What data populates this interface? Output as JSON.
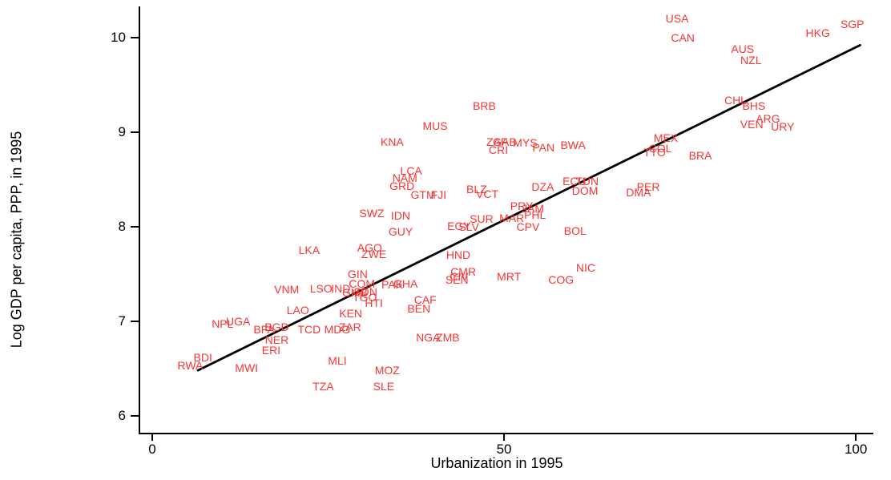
{
  "chart_data": {
    "type": "scatter",
    "title": "",
    "xlabel": "Urbanization in 1995",
    "ylabel": "Log GDP per capita, PPP, in 1995",
    "xlim": [
      -1.71,
      102.49
    ],
    "ylim": [
      5.82,
      10.33
    ],
    "x_ticks": [
      0,
      50,
      100
    ],
    "y_ticks": [
      6,
      7,
      8,
      9,
      10
    ],
    "grid": false,
    "legend": null,
    "marker_style": "country-code-text",
    "label_color": "#f93434",
    "axis_color": "#000000",
    "trend_line": {
      "x1": 6.5,
      "y1": 6.48,
      "x2": 100.6,
      "y2": 9.92,
      "color": "#000000"
    },
    "points": [
      {
        "label": "USA",
        "x": 74.6,
        "y": 10.2
      },
      {
        "label": "CAN",
        "x": 75.4,
        "y": 10.0
      },
      {
        "label": "SGP",
        "x": 99.5,
        "y": 10.14
      },
      {
        "label": "HKG",
        "x": 94.6,
        "y": 10.05
      },
      {
        "label": "AUS",
        "x": 83.9,
        "y": 9.88
      },
      {
        "label": "NZL",
        "x": 85.1,
        "y": 9.76
      },
      {
        "label": "CHL",
        "x": 82.9,
        "y": 9.34
      },
      {
        "label": "BHS",
        "x": 85.5,
        "y": 9.28
      },
      {
        "label": "ARG",
        "x": 87.5,
        "y": 9.14
      },
      {
        "label": "VEN",
        "x": 85.2,
        "y": 9.08
      },
      {
        "label": "URY",
        "x": 89.6,
        "y": 9.06
      },
      {
        "label": "BRB",
        "x": 47.2,
        "y": 9.28
      },
      {
        "label": "MUS",
        "x": 40.2,
        "y": 9.07
      },
      {
        "label": "KNA",
        "x": 34.1,
        "y": 8.9
      },
      {
        "label": "ZAF",
        "x": 49.0,
        "y": 8.9
      },
      {
        "label": "GAB",
        "x": 50.1,
        "y": 8.9
      },
      {
        "label": "MYS",
        "x": 53.0,
        "y": 8.89
      },
      {
        "label": "PAN",
        "x": 55.6,
        "y": 8.84
      },
      {
        "label": "BWA",
        "x": 59.8,
        "y": 8.86
      },
      {
        "label": "CRI",
        "x": 49.2,
        "y": 8.81
      },
      {
        "label": "MEX",
        "x": 73.0,
        "y": 8.94
      },
      {
        "label": "COL",
        "x": 72.2,
        "y": 8.83
      },
      {
        "label": "TTO",
        "x": 71.4,
        "y": 8.79
      },
      {
        "label": "BRA",
        "x": 77.9,
        "y": 8.75
      },
      {
        "label": "LCA",
        "x": 36.8,
        "y": 8.59
      },
      {
        "label": "NAM",
        "x": 35.9,
        "y": 8.52
      },
      {
        "label": "GRD",
        "x": 35.5,
        "y": 8.43
      },
      {
        "label": "GTM",
        "x": 38.5,
        "y": 8.34
      },
      {
        "label": "FJI",
        "x": 40.7,
        "y": 8.34
      },
      {
        "label": "ECU",
        "x": 60.0,
        "y": 8.48
      },
      {
        "label": "TUN",
        "x": 61.8,
        "y": 8.48
      },
      {
        "label": "DOM",
        "x": 61.5,
        "y": 8.38
      },
      {
        "label": "DZA",
        "x": 55.5,
        "y": 8.42
      },
      {
        "label": "BLZ",
        "x": 46.1,
        "y": 8.4
      },
      {
        "label": "VCT",
        "x": 47.6,
        "y": 8.35
      },
      {
        "label": "PER",
        "x": 70.5,
        "y": 8.42
      },
      {
        "label": "DMA",
        "x": 69.1,
        "y": 8.36
      },
      {
        "label": "SWZ",
        "x": 31.2,
        "y": 8.14
      },
      {
        "label": "IDN",
        "x": 35.3,
        "y": 8.12
      },
      {
        "label": "GUY",
        "x": 35.3,
        "y": 7.95
      },
      {
        "label": "PRY",
        "x": 52.5,
        "y": 8.22
      },
      {
        "label": "JAM",
        "x": 54.1,
        "y": 8.19
      },
      {
        "label": "PHL",
        "x": 54.4,
        "y": 8.13
      },
      {
        "label": "MAR",
        "x": 51.1,
        "y": 8.09
      },
      {
        "label": "SUR",
        "x": 46.8,
        "y": 8.08
      },
      {
        "label": "EGY",
        "x": 43.6,
        "y": 8.01
      },
      {
        "label": "SLV",
        "x": 45.0,
        "y": 8.0
      },
      {
        "label": "CPV",
        "x": 53.4,
        "y": 8.0
      },
      {
        "label": "BOL",
        "x": 60.1,
        "y": 7.96
      },
      {
        "label": "NIC",
        "x": 61.6,
        "y": 7.57
      },
      {
        "label": "LKA",
        "x": 22.3,
        "y": 7.75
      },
      {
        "label": "AGO",
        "x": 30.9,
        "y": 7.78
      },
      {
        "label": "ZWE",
        "x": 31.5,
        "y": 7.71
      },
      {
        "label": "HND",
        "x": 43.5,
        "y": 7.7
      },
      {
        "label": "CMR",
        "x": 44.2,
        "y": 7.52
      },
      {
        "label": "CIV",
        "x": 43.6,
        "y": 7.47
      },
      {
        "label": "SEN",
        "x": 43.3,
        "y": 7.44
      },
      {
        "label": "MRT",
        "x": 50.7,
        "y": 7.47
      },
      {
        "label": "COG",
        "x": 58.1,
        "y": 7.44
      },
      {
        "label": "GIN",
        "x": 29.2,
        "y": 7.5
      },
      {
        "label": "COM",
        "x": 29.8,
        "y": 7.4
      },
      {
        "label": "VNM",
        "x": 19.1,
        "y": 7.34
      },
      {
        "label": "LSO",
        "x": 24.0,
        "y": 7.35
      },
      {
        "label": "IND",
        "x": 26.8,
        "y": 7.35
      },
      {
        "label": "GMB",
        "x": 28.8,
        "y": 7.3
      },
      {
        "label": "SDN",
        "x": 30.3,
        "y": 7.31
      },
      {
        "label": "TGO",
        "x": 30.2,
        "y": 7.25
      },
      {
        "label": "HTI",
        "x": 31.5,
        "y": 7.19
      },
      {
        "label": "PAK",
        "x": 34.1,
        "y": 7.39
      },
      {
        "label": "GHA",
        "x": 36.0,
        "y": 7.4
      },
      {
        "label": "KEN",
        "x": 28.2,
        "y": 7.08
      },
      {
        "label": "LAO",
        "x": 20.7,
        "y": 7.12
      },
      {
        "label": "CAF",
        "x": 38.8,
        "y": 7.23
      },
      {
        "label": "BEN",
        "x": 37.9,
        "y": 7.13
      },
      {
        "label": "NPL",
        "x": 10.0,
        "y": 6.97
      },
      {
        "label": "UGA",
        "x": 12.2,
        "y": 7.0
      },
      {
        "label": "BFA",
        "x": 15.9,
        "y": 6.91
      },
      {
        "label": "BGD",
        "x": 17.7,
        "y": 6.94
      },
      {
        "label": "TCD",
        "x": 22.3,
        "y": 6.91
      },
      {
        "label": "MDG",
        "x": 26.3,
        "y": 6.91
      },
      {
        "label": "ZAR",
        "x": 28.1,
        "y": 6.94
      },
      {
        "label": "NER",
        "x": 17.7,
        "y": 6.8
      },
      {
        "label": "ERI",
        "x": 16.9,
        "y": 6.69
      },
      {
        "label": "BDI",
        "x": 7.2,
        "y": 6.62
      },
      {
        "label": "RWA",
        "x": 5.4,
        "y": 6.53
      },
      {
        "label": "MWI",
        "x": 13.4,
        "y": 6.51
      },
      {
        "label": "MLI",
        "x": 26.3,
        "y": 6.58
      },
      {
        "label": "TZA",
        "x": 24.3,
        "y": 6.31
      },
      {
        "label": "MOZ",
        "x": 33.4,
        "y": 6.48
      },
      {
        "label": "SLE",
        "x": 32.9,
        "y": 6.31
      },
      {
        "label": "NGA",
        "x": 39.2,
        "y": 6.83
      },
      {
        "label": "ZMB",
        "x": 42.0,
        "y": 6.83
      }
    ]
  }
}
